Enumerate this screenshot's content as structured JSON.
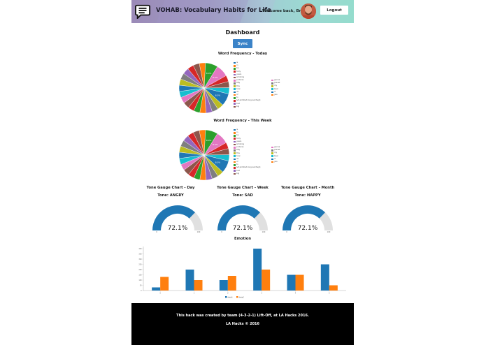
{
  "header": {
    "app_title": "VOHAB: Vocabulary Habits for Life",
    "welcome_text": "Welcome back, Brett",
    "logout_label": "Logout",
    "logo_icon": "speech-bubble-icon",
    "colors": {
      "gradient_start": "#9b8ab8",
      "gradient_end": "#94dccd"
    }
  },
  "main": {
    "page_title": "Dashboard",
    "sync_label": "Sync",
    "sync_color": "#3b83c8"
  },
  "pie_today": {
    "title": "Word Frequency - Today",
    "slice_labels": [
      "8.0%",
      "8.0%",
      "8.0%"
    ],
    "legend_col1": [
      "is",
      "in",
      "be",
      "forty",
      "years",
      "smoking",
      "pictures",
      "fifty",
      "this",
      "how",
      "do",
      "of",
      "to",
      "&lt;jumbled-long-word&gt;",
      "bad",
      "big"
    ],
    "legend_col2": [
      "gonna",
      "planet",
      "my",
      "beer",
      "it",
      "yes"
    ]
  },
  "pie_week": {
    "title": "Word Frequency - This Week",
    "slice_labels": [
      "8.0%",
      "8.0%",
      "8.0%"
    ],
    "legend_col1": [
      "is",
      "in",
      "be",
      "forty",
      "years",
      "smoking",
      "pictures",
      "fifty",
      "this",
      "how",
      "do",
      "of",
      "to",
      "&lt;jumbled-long-word&gt;",
      "bad",
      "big"
    ],
    "legend_col2": [
      "gonna",
      "planet",
      "my",
      "beer",
      "it",
      "yes"
    ]
  },
  "gauges": [
    {
      "title": "Tone Gauge Chart - Day",
      "tone": "Tone: ANGRY",
      "value": "72.1%",
      "min": "0",
      "max": "100"
    },
    {
      "title": "Tone Gauge Chart - Week",
      "tone": "Tone: SAD",
      "value": "72.1%",
      "min": "0",
      "max": "100"
    },
    {
      "title": "Tone Gauge Chart - Month",
      "tone": "Tone: HAPPY",
      "value": "72.1%",
      "min": "0",
      "max": "100"
    }
  ],
  "chart_data": [
    {
      "type": "pie",
      "title": "Word Frequency - Today",
      "categories": [
        "is",
        "in",
        "be",
        "forty",
        "years",
        "smoking",
        "pictures",
        "fifty",
        "this",
        "how",
        "do",
        "of",
        "to",
        "&lt;jumbled-long-word&gt;",
        "bad",
        "big",
        "gonna",
        "planet",
        "my",
        "beer",
        "it",
        "yes"
      ],
      "annotations": [
        "8.0%",
        "8.0%",
        "8.0%"
      ],
      "legend_position": "right"
    },
    {
      "type": "pie",
      "title": "Word Frequency - This Week",
      "categories": [
        "is",
        "in",
        "be",
        "forty",
        "years",
        "smoking",
        "pictures",
        "fifty",
        "this",
        "how",
        "do",
        "of",
        "to",
        "&lt;jumbled-long-word&gt;",
        "bad",
        "big",
        "gonna",
        "planet",
        "my",
        "beer",
        "it",
        "yes"
      ],
      "annotations": [
        "8.0%",
        "8.0%",
        "8.0%"
      ],
      "legend_position": "right"
    },
    {
      "type": "bar",
      "title": "Emotion",
      "categories": [
        "0",
        "1",
        "2",
        "3",
        "4",
        "5"
      ],
      "series": [
        {
          "name": "data1",
          "color": "#1f77b4",
          "values": [
            30,
            200,
            100,
            400,
            150,
            250
          ]
        },
        {
          "name": "data2",
          "color": "#ff7f0e",
          "values": [
            130,
            100,
            140,
            200,
            150,
            50
          ]
        }
      ],
      "xlabel": "",
      "ylabel": "",
      "ylim": [
        0,
        400
      ],
      "yticks": [
        0,
        50,
        100,
        150,
        200,
        250,
        300,
        350,
        400
      ],
      "legend_position": "bottom",
      "grid": false
    }
  ],
  "emotion": {
    "title": "Emotion",
    "legend": [
      "data1",
      "data2"
    ]
  },
  "footer": {
    "line1": "This hack was created by team (4-3-2-1) Lift-Off, at LA Hacks 2016.",
    "line2": "LA Hacks © 2016"
  }
}
